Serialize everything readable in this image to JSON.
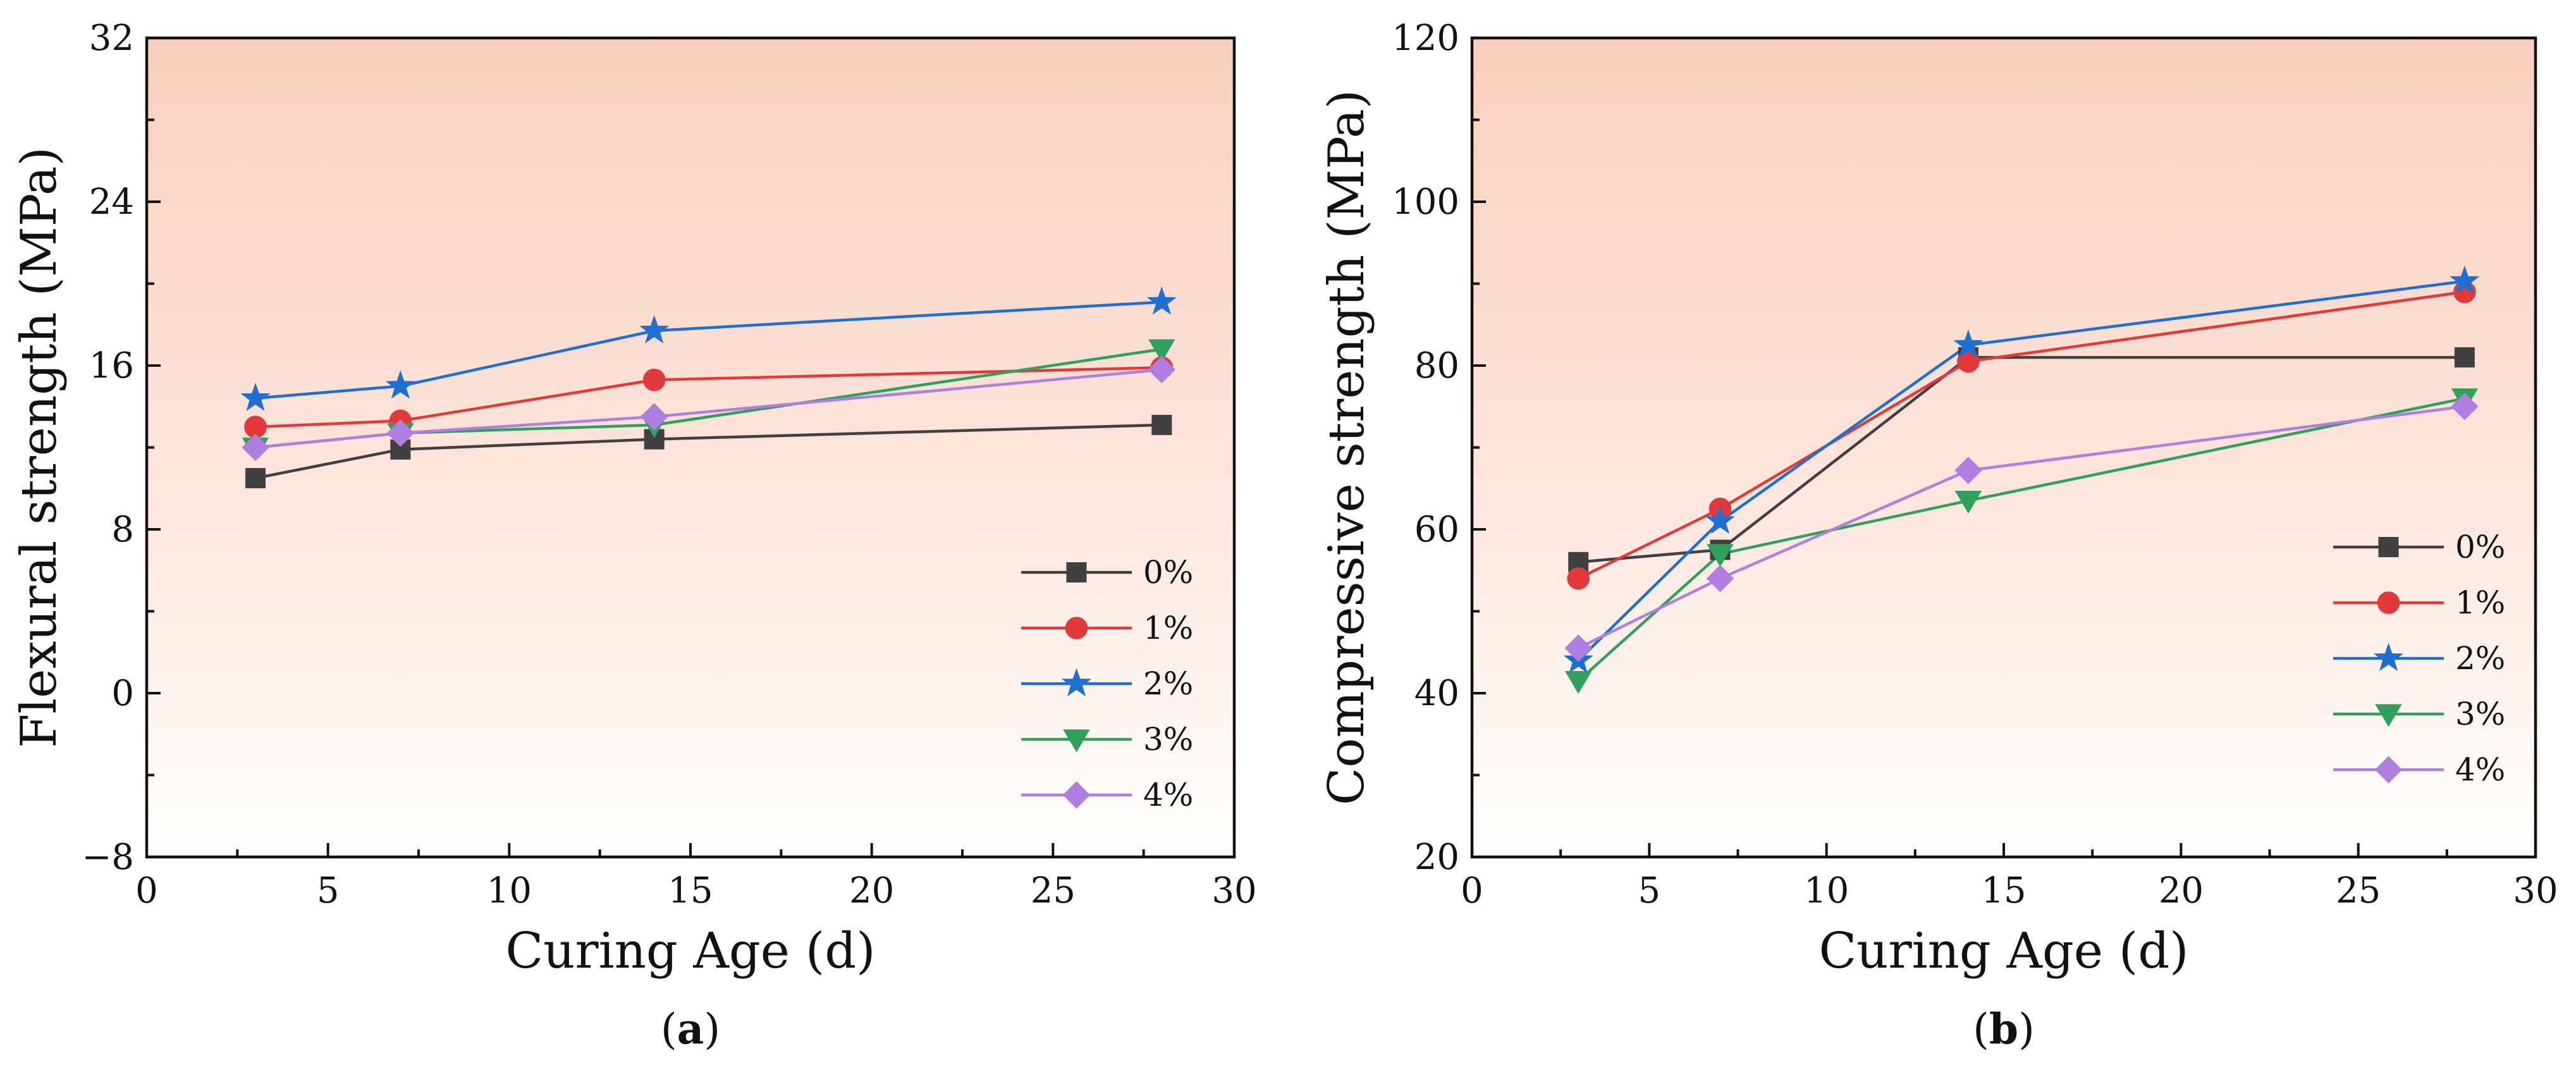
{
  "chart_data": [
    {
      "type": "line",
      "panel_label": "(a)",
      "panel_letter": "a",
      "title": "",
      "xlabel": "Curing Age (d)",
      "ylabel": "Flexural strength (MPa)",
      "xlim": [
        0,
        30
      ],
      "ylim": [
        -8,
        32
      ],
      "xticks": [
        0,
        5,
        10,
        15,
        20,
        25,
        30
      ],
      "yticks": [
        -8,
        0,
        8,
        16,
        24,
        32
      ],
      "ytick_labels": [
        "−8",
        "0",
        "8",
        "16",
        "24",
        "32"
      ],
      "grid": false,
      "legend_position": "bottom-right",
      "background": "gradient salmon-to-white",
      "x": [
        3,
        7,
        14,
        28
      ],
      "series": [
        {
          "name": "0%",
          "marker": "square",
          "color": "#404040",
          "values": [
            10.5,
            11.9,
            12.4,
            13.1
          ]
        },
        {
          "name": "1%",
          "marker": "circle",
          "color": "#e23a3a",
          "values": [
            13.0,
            13.3,
            15.3,
            15.9
          ]
        },
        {
          "name": "2%",
          "marker": "star",
          "color": "#1f6fd1",
          "values": [
            14.4,
            15.0,
            17.7,
            19.1
          ]
        },
        {
          "name": "3%",
          "marker": "triangle-down",
          "color": "#2fa15c",
          "values": [
            12.0,
            12.7,
            13.1,
            16.8
          ]
        },
        {
          "name": "4%",
          "marker": "diamond",
          "color": "#b07ee0",
          "values": [
            12.0,
            12.7,
            13.5,
            15.8
          ]
        }
      ]
    },
    {
      "type": "line",
      "panel_label": "(b)",
      "panel_letter": "b",
      "title": "",
      "xlabel": "Curing Age (d)",
      "ylabel": "Compressive strength (MPa)",
      "xlim": [
        0,
        30
      ],
      "ylim": [
        20,
        120
      ],
      "xticks": [
        0,
        5,
        10,
        15,
        20,
        25,
        30
      ],
      "yticks": [
        20,
        40,
        60,
        80,
        100,
        120
      ],
      "ytick_labels": [
        "20",
        "40",
        "60",
        "80",
        "100",
        "120"
      ],
      "grid": false,
      "legend_position": "bottom-right",
      "background": "gradient salmon-to-white",
      "x": [
        3,
        7,
        14,
        28
      ],
      "series": [
        {
          "name": "0%",
          "marker": "square",
          "color": "#404040",
          "values": [
            56.0,
            57.5,
            81.0,
            81.0
          ]
        },
        {
          "name": "1%",
          "marker": "circle",
          "color": "#e23a3a",
          "values": [
            54.0,
            62.5,
            80.5,
            89.0
          ]
        },
        {
          "name": "2%",
          "marker": "star",
          "color": "#1f6fd1",
          "values": [
            44.0,
            61.0,
            82.5,
            90.3
          ]
        },
        {
          "name": "3%",
          "marker": "triangle-down",
          "color": "#2fa15c",
          "values": [
            41.5,
            57.0,
            63.5,
            76.0
          ]
        },
        {
          "name": "4%",
          "marker": "diamond",
          "color": "#b07ee0",
          "values": [
            45.5,
            54.0,
            67.2,
            75.0
          ]
        }
      ]
    }
  ]
}
